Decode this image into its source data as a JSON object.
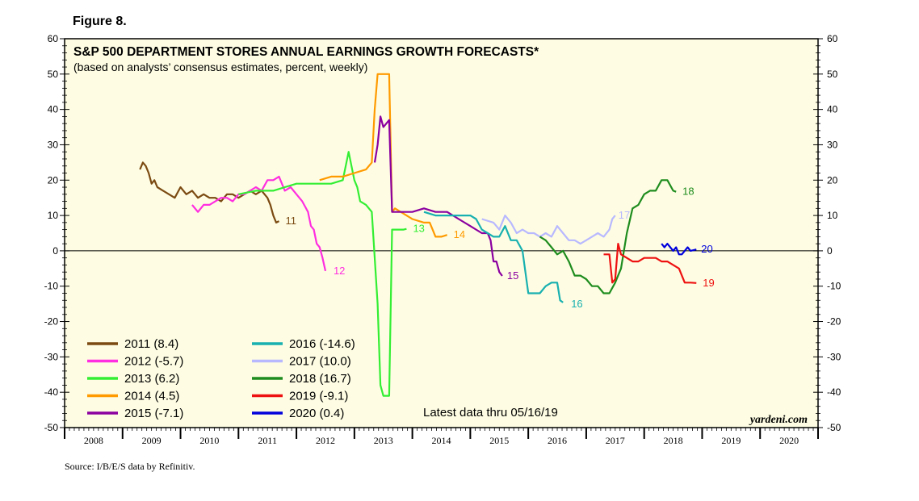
{
  "figure_label": "Figure 8.",
  "title": "S&P 500 DEPARTMENT STORES ANNUAL EARNINGS GROWTH FORECASTS*",
  "subtitle": "(based on analysts’ consensus estimates, percent, weekly)",
  "latest_note": "Latest data thru 05/16/19",
  "watermark": "yardeni.com",
  "source": "Source: I/B/E/S data by Refinitiv.",
  "colors": {
    "background": "#fefde3",
    "axis": "#000000"
  },
  "chart_data": {
    "type": "line",
    "title": "S&P 500 DEPARTMENT STORES ANNUAL EARNINGS GROWTH FORECASTS*",
    "subtitle": "(based on analysts’ consensus estimates, percent, weekly)",
    "ylim": [
      -50,
      60
    ],
    "xlim": [
      2008,
      2021
    ],
    "y_ticks": [
      60,
      50,
      40,
      30,
      20,
      10,
      0,
      -10,
      -20,
      -30,
      -40,
      -50
    ],
    "x_ticks": [
      "2008",
      "2009",
      "2010",
      "2011",
      "2012",
      "2013",
      "2014",
      "2015",
      "2016",
      "2017",
      "2018",
      "2019",
      "2020"
    ],
    "zero_line": true,
    "legend_location": "bottom-left",
    "series": [
      {
        "name": "2011 (8.4)",
        "end_label": "11",
        "color": "#7b4a12",
        "x": [
          2009.3,
          2009.35,
          2009.4,
          2009.45,
          2009.5,
          2009.55,
          2009.6,
          2009.7,
          2009.8,
          2009.9,
          2010.0,
          2010.1,
          2010.2,
          2010.3,
          2010.4,
          2010.5,
          2010.6,
          2010.7,
          2010.8,
          2010.9,
          2011.0,
          2011.1,
          2011.2,
          2011.3,
          2011.4,
          2011.5,
          2011.55,
          2011.6,
          2011.65,
          2011.7
        ],
        "y": [
          23,
          25,
          24,
          22,
          19,
          20,
          18,
          17,
          16,
          15,
          18,
          16,
          17,
          15,
          16,
          15,
          15,
          14,
          16,
          16,
          15,
          16,
          17,
          16,
          17,
          15,
          13,
          10,
          8,
          8.4
        ]
      },
      {
        "name": "2012 (-5.7)",
        "end_label": "12",
        "color": "#ff2ee0",
        "x": [
          2010.2,
          2010.3,
          2010.4,
          2010.5,
          2010.6,
          2010.7,
          2010.8,
          2010.9,
          2011.0,
          2011.1,
          2011.2,
          2011.3,
          2011.4,
          2011.5,
          2011.6,
          2011.7,
          2011.8,
          2011.9,
          2012.0,
          2012.1,
          2012.2,
          2012.25,
          2012.3,
          2012.35,
          2012.4,
          2012.45,
          2012.5
        ],
        "y": [
          13,
          11,
          13,
          13,
          14,
          15,
          15,
          14,
          16,
          16,
          17,
          18,
          17,
          20,
          20,
          21,
          17,
          18,
          16,
          14,
          11,
          7,
          6,
          2,
          1,
          -2,
          -5.7
        ]
      },
      {
        "name": "2013 (6.2)",
        "end_label": "13",
        "color": "#33ee33",
        "x": [
          2011.0,
          2011.3,
          2011.6,
          2011.8,
          2012.0,
          2012.3,
          2012.6,
          2012.8,
          2012.9,
          2013.0,
          2013.05,
          2013.1,
          2013.2,
          2013.3,
          2013.4,
          2013.45,
          2013.5,
          2013.6,
          2013.65,
          2013.7,
          2013.75,
          2013.8,
          2013.85,
          2013.9
        ],
        "y": [
          16,
          17,
          17,
          18,
          19,
          19,
          19,
          20,
          28,
          20,
          18,
          14,
          13,
          11,
          -15,
          -38,
          -41,
          -41,
          6,
          6,
          6,
          6,
          6,
          6.2
        ]
      },
      {
        "name": "2014 (4.5)",
        "end_label": "14",
        "color": "#ff9a00",
        "x": [
          2012.4,
          2012.6,
          2012.8,
          2013.0,
          2013.2,
          2013.3,
          2013.35,
          2013.4,
          2013.5,
          2013.6,
          2013.65,
          2013.7,
          2013.9,
          2014.0,
          2014.2,
          2014.3,
          2014.35,
          2014.4,
          2014.5,
          2014.6
        ],
        "y": [
          20,
          21,
          21,
          22,
          23,
          25,
          40,
          50,
          50,
          50,
          11,
          12,
          10,
          9,
          8,
          8,
          6,
          4,
          4,
          4.5
        ]
      },
      {
        "name": "2015 (-7.1)",
        "end_label": "15",
        "color": "#8b00a0",
        "x": [
          2013.35,
          2013.4,
          2013.45,
          2013.5,
          2013.55,
          2013.6,
          2013.65,
          2013.8,
          2014.0,
          2014.2,
          2014.4,
          2014.6,
          2014.8,
          2015.0,
          2015.2,
          2015.3,
          2015.35,
          2015.4,
          2015.45,
          2015.5,
          2015.55
        ],
        "y": [
          25,
          30,
          38,
          35,
          36,
          37,
          11,
          11,
          11,
          12,
          11,
          11,
          9,
          7,
          5,
          5,
          3,
          -3,
          -3,
          -6,
          -7.1
        ]
      },
      {
        "name": "2016 (-14.6)",
        "end_label": "16",
        "color": "#18b0b0",
        "x": [
          2014.2,
          2014.4,
          2014.6,
          2014.8,
          2015.0,
          2015.1,
          2015.2,
          2015.3,
          2015.4,
          2015.5,
          2015.6,
          2015.7,
          2015.8,
          2015.9,
          2016.0,
          2016.1,
          2016.2,
          2016.3,
          2016.4,
          2016.5,
          2016.55,
          2016.6
        ],
        "y": [
          11,
          10,
          10,
          10,
          10,
          9,
          6,
          5,
          4,
          4,
          7,
          3,
          3,
          0,
          -12,
          -12,
          -12,
          -10,
          -9,
          -9,
          -14,
          -14.6
        ]
      },
      {
        "name": "2017 (10.0)",
        "end_label": "17",
        "color": "#b8b8ff",
        "x": [
          2015.2,
          2015.4,
          2015.5,
          2015.6,
          2015.7,
          2015.8,
          2015.9,
          2016.0,
          2016.1,
          2016.2,
          2016.3,
          2016.4,
          2016.5,
          2016.6,
          2016.7,
          2016.8,
          2016.9,
          2017.0,
          2017.1,
          2017.2,
          2017.3,
          2017.4,
          2017.45,
          2017.5
        ],
        "y": [
          9,
          8,
          6,
          10,
          8,
          5,
          6,
          5,
          5,
          4,
          5,
          4,
          7,
          5,
          3,
          3,
          2,
          3,
          4,
          5,
          4,
          6,
          9,
          10
        ]
      },
      {
        "name": "2018 (16.7)",
        "end_label": "18",
        "color": "#1e8c1e",
        "x": [
          2016.2,
          2016.3,
          2016.4,
          2016.5,
          2016.6,
          2016.7,
          2016.8,
          2016.9,
          2017.0,
          2017.1,
          2017.2,
          2017.3,
          2017.4,
          2017.5,
          2017.6,
          2017.7,
          2017.8,
          2017.9,
          2018.0,
          2018.1,
          2018.2,
          2018.3,
          2018.4,
          2018.5,
          2018.55
        ],
        "y": [
          4,
          3,
          1,
          -1,
          0,
          -3,
          -7,
          -7,
          -8,
          -10,
          -10,
          -12,
          -12,
          -9,
          -5,
          5,
          12,
          13,
          16,
          17,
          17,
          20,
          20,
          17,
          16.7
        ]
      },
      {
        "name": "2019 (-9.1)",
        "end_label": "19",
        "color": "#ee1111",
        "x": [
          2017.3,
          2017.4,
          2017.45,
          2017.5,
          2017.55,
          2017.6,
          2017.7,
          2017.8,
          2017.9,
          2018.0,
          2018.1,
          2018.2,
          2018.3,
          2018.4,
          2018.5,
          2018.6,
          2018.7,
          2018.8,
          2018.9
        ],
        "y": [
          -1,
          -1,
          -9,
          -8,
          2,
          -1,
          -2,
          -3,
          -3,
          -2,
          -2,
          -2,
          -3,
          -3,
          -4,
          -5,
          -9,
          -9,
          -9.1
        ]
      },
      {
        "name": "2020 (0.4)",
        "end_label": "20",
        "color": "#0000dd",
        "x": [
          2018.3,
          2018.35,
          2018.4,
          2018.45,
          2018.5,
          2018.55,
          2018.6,
          2018.65,
          2018.7,
          2018.75,
          2018.8,
          2018.9
        ],
        "y": [
          2,
          1,
          2,
          1,
          0,
          1,
          -1,
          -1,
          0,
          1,
          0,
          0.4
        ]
      }
    ]
  }
}
